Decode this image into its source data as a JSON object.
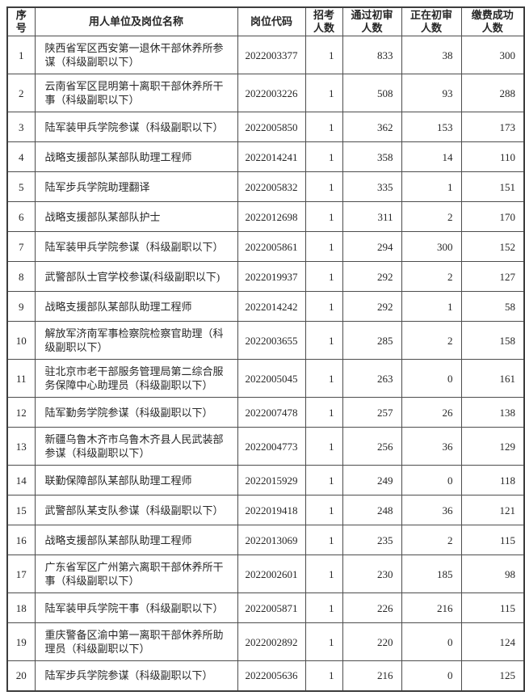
{
  "colors": {
    "background": "#ffffff",
    "text": "#262626",
    "border_inner": "#4d4d4d",
    "border_outer": "#3d3d3d"
  },
  "table": {
    "columns": [
      {
        "key": "serial",
        "label": "序\n号"
      },
      {
        "key": "position",
        "label": "用人单位及岗位名称"
      },
      {
        "key": "code",
        "label": "岗位代码"
      },
      {
        "key": "recruit",
        "label": "招考\n人数"
      },
      {
        "key": "passed",
        "label": "通过初审\n人数"
      },
      {
        "key": "reviewing",
        "label": "正在初审\n人数"
      },
      {
        "key": "paid",
        "label": "缴费成功\n人数"
      }
    ],
    "rows": [
      {
        "serial": "1",
        "position": "陕西省军区西安第一退休干部休养所参\n谋（科级副职以下）",
        "code": "2022003377",
        "recruit": "1",
        "passed": "833",
        "reviewing": "38",
        "paid": "300"
      },
      {
        "serial": "2",
        "position": "云南省军区昆明第十离职干部休养所干\n事（科级副职以下）",
        "code": "2022003226",
        "recruit": "1",
        "passed": "508",
        "reviewing": "93",
        "paid": "288"
      },
      {
        "serial": "3",
        "position": "陆军装甲兵学院参谋（科级副职以下）",
        "code": "2022005850",
        "recruit": "1",
        "passed": "362",
        "reviewing": "153",
        "paid": "173"
      },
      {
        "serial": "4",
        "position": "战略支援部队某部队助理工程师",
        "code": "2022014241",
        "recruit": "1",
        "passed": "358",
        "reviewing": "14",
        "paid": "110"
      },
      {
        "serial": "5",
        "position": "陆军步兵学院助理翻译",
        "code": "2022005832",
        "recruit": "1",
        "passed": "335",
        "reviewing": "1",
        "paid": "151"
      },
      {
        "serial": "6",
        "position": "战略支援部队某部队护士",
        "code": "2022012698",
        "recruit": "1",
        "passed": "311",
        "reviewing": "2",
        "paid": "170"
      },
      {
        "serial": "7",
        "position": "陆军装甲兵学院参谋（科级副职以下）",
        "code": "2022005861",
        "recruit": "1",
        "passed": "294",
        "reviewing": "300",
        "paid": "152"
      },
      {
        "serial": "8",
        "position": "武警部队士官学校参谋(科级副职以下)",
        "code": "2022019937",
        "recruit": "1",
        "passed": "292",
        "reviewing": "2",
        "paid": "127"
      },
      {
        "serial": "9",
        "position": "战略支援部队某部队助理工程师",
        "code": "2022014242",
        "recruit": "1",
        "passed": "292",
        "reviewing": "1",
        "paid": "58"
      },
      {
        "serial": "10",
        "position": "解放军济南军事检察院检察官助理（科\n级副职以下）",
        "code": "2022003655",
        "recruit": "1",
        "passed": "285",
        "reviewing": "2",
        "paid": "158"
      },
      {
        "serial": "11",
        "position": "驻北京市老干部服务管理局第二综合服\n务保障中心助理员（科级副职以下）",
        "code": "2022005045",
        "recruit": "1",
        "passed": "263",
        "reviewing": "0",
        "paid": "161"
      },
      {
        "serial": "12",
        "position": "陆军勤务学院参谋（科级副职以下）",
        "code": "2022007478",
        "recruit": "1",
        "passed": "257",
        "reviewing": "26",
        "paid": "138"
      },
      {
        "serial": "13",
        "position": "新疆乌鲁木齐市乌鲁木齐县人民武装部\n参谋（科级副职以下）",
        "code": "2022004773",
        "recruit": "1",
        "passed": "256",
        "reviewing": "36",
        "paid": "129"
      },
      {
        "serial": "14",
        "position": "联勤保障部队某部队助理工程师",
        "code": "2022015929",
        "recruit": "1",
        "passed": "249",
        "reviewing": "0",
        "paid": "118"
      },
      {
        "serial": "15",
        "position": "武警部队某支队参谋（科级副职以下）",
        "code": "2022019418",
        "recruit": "1",
        "passed": "248",
        "reviewing": "36",
        "paid": "121"
      },
      {
        "serial": "16",
        "position": "战略支援部队某部队助理工程师",
        "code": "2022013069",
        "recruit": "1",
        "passed": "235",
        "reviewing": "2",
        "paid": "115"
      },
      {
        "serial": "17",
        "position": "广东省军区广州第六离职干部休养所干\n事（科级副职以下）",
        "code": "2022002601",
        "recruit": "1",
        "passed": "230",
        "reviewing": "185",
        "paid": "98"
      },
      {
        "serial": "18",
        "position": "陆军装甲兵学院干事（科级副职以下）",
        "code": "2022005871",
        "recruit": "1",
        "passed": "226",
        "reviewing": "216",
        "paid": "115"
      },
      {
        "serial": "19",
        "position": "重庆警备区渝中第一离职干部休养所助\n理员（科级副职以下）",
        "code": "2022002892",
        "recruit": "1",
        "passed": "220",
        "reviewing": "0",
        "paid": "124"
      },
      {
        "serial": "20",
        "position": "陆军步兵学院参谋（科级副职以下）",
        "code": "2022005636",
        "recruit": "1",
        "passed": "216",
        "reviewing": "0",
        "paid": "125"
      }
    ]
  }
}
